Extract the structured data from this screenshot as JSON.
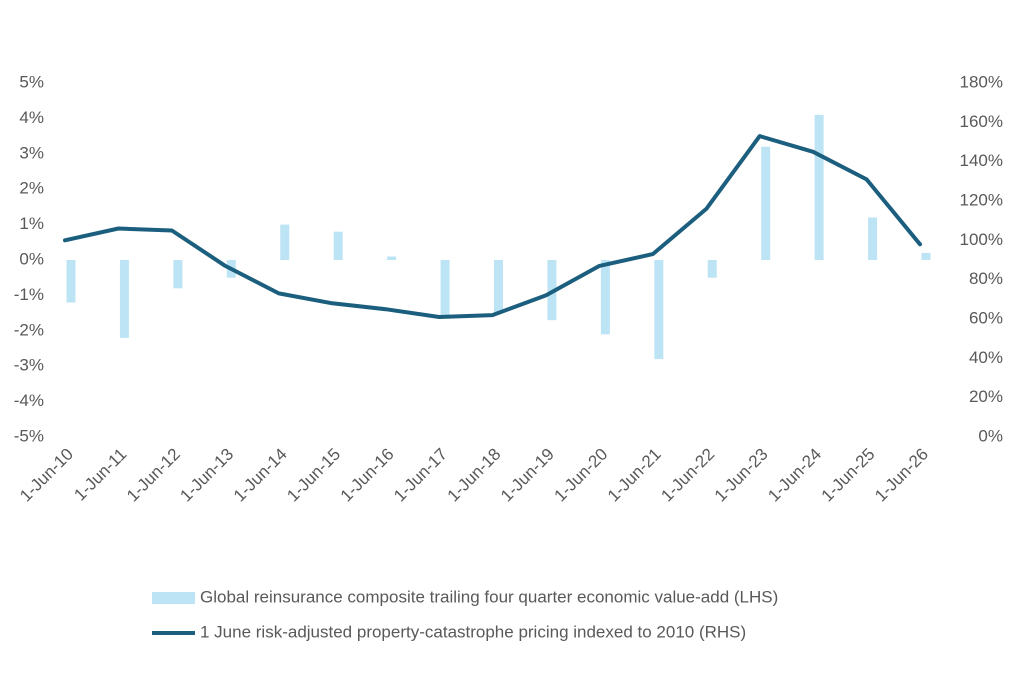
{
  "chart_data": {
    "type": "combo",
    "categories": [
      "1-Jun-10",
      "1-Jun-11",
      "1-Jun-12",
      "1-Jun-13",
      "1-Jun-14",
      "1-Jun-15",
      "1-Jun-16",
      "1-Jun-17",
      "1-Jun-18",
      "1-Jun-19",
      "1-Jun-20",
      "1-Jun-21",
      "1-Jun-22",
      "1-Jun-23",
      "1-Jun-24",
      "1-Jun-25",
      "1-Jun-26"
    ],
    "series": [
      {
        "name": "Global reinsurance composite trailing four quarter economic value-add (LHS)",
        "type": "bar",
        "color": "#bde4f4",
        "values": [
          -1.2,
          -2.2,
          -0.8,
          -0.5,
          1.0,
          0.8,
          0.1,
          -1.6,
          -1.5,
          -1.7,
          -2.1,
          -2.8,
          -0.5,
          3.2,
          4.1,
          1.2,
          0.2
        ]
      },
      {
        "name": "1 June risk-adjusted property-catastrophe pricing indexed to 2010 (RHS)",
        "type": "line",
        "axis": "y2",
        "color": "#1b5e7e",
        "values": [
          100,
          106,
          105,
          87,
          73,
          68,
          65,
          61,
          62,
          72,
          87,
          93,
          116,
          153,
          145,
          131,
          98
        ]
      }
    ],
    "ylim": [
      -5,
      5
    ],
    "yticks": [
      {
        "value": 5,
        "label": "5%"
      },
      {
        "value": 4,
        "label": "4%"
      },
      {
        "value": 3,
        "label": "3%"
      },
      {
        "value": 2,
        "label": "2%"
      },
      {
        "value": 1,
        "label": "1%"
      },
      {
        "value": 0,
        "label": "0%"
      },
      {
        "value": -1,
        "label": "-1%"
      },
      {
        "value": -2,
        "label": "-2%"
      },
      {
        "value": -3,
        "label": "-3%"
      },
      {
        "value": -4,
        "label": "-4%"
      },
      {
        "value": -5,
        "label": "-5%"
      }
    ],
    "y2lim": [
      0,
      180
    ],
    "y2ticks": [
      {
        "value": 180,
        "label": "180%"
      },
      {
        "value": 160,
        "label": "160%"
      },
      {
        "value": 140,
        "label": "140%"
      },
      {
        "value": 120,
        "label": "120%"
      },
      {
        "value": 100,
        "label": "100%"
      },
      {
        "value": 80,
        "label": "80%"
      },
      {
        "value": 60,
        "label": "60%"
      },
      {
        "value": 40,
        "label": "40%"
      },
      {
        "value": 20,
        "label": "20%"
      },
      {
        "value": 0,
        "label": "0%"
      }
    ],
    "grid": false
  }
}
